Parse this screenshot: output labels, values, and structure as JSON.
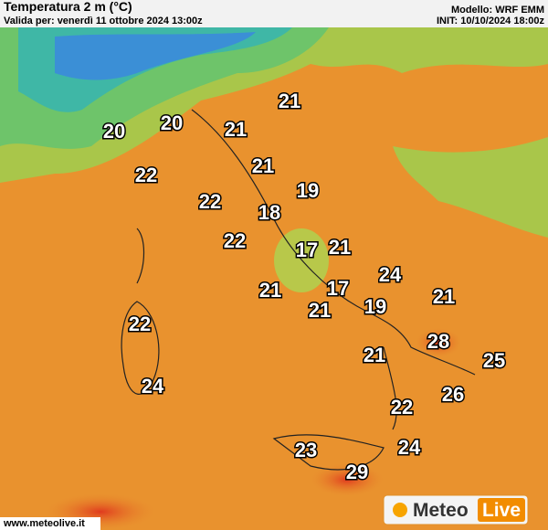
{
  "header": {
    "title": "Temperatura 2 m (°C)",
    "valid": "Valida per: venerdì 11 ottobre 2024 13:00z",
    "model": "Modello: WRF EMM",
    "init": "INIT: 10/10/2024 18:00z"
  },
  "labels": [
    21,
    20,
    20,
    21,
    21,
    22,
    19,
    22,
    18,
    22,
    17,
    21,
    24,
    17,
    21,
    21,
    19,
    21,
    22,
    28,
    21,
    25,
    24,
    26,
    22,
    24,
    23,
    29
  ],
  "logo": {
    "left": "Meteo",
    "right": "Live"
  },
  "footer": "www.meteolive.it"
}
